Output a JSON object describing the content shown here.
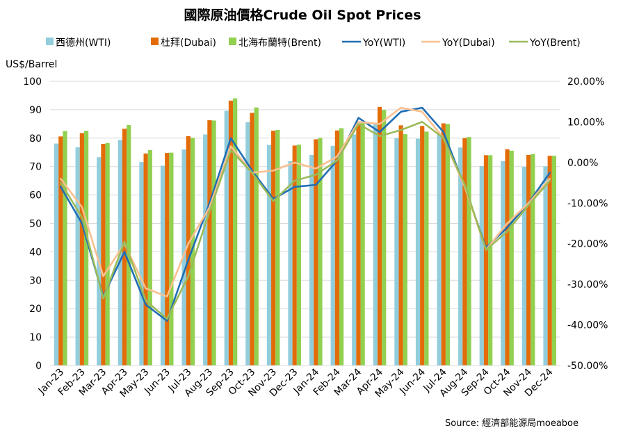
{
  "chart_data": {
    "type": "bar+line",
    "title": "國際原油價格Crude Oil Spot Prices",
    "y_left_label": "US$/Barrel",
    "y_left_lim": [
      0,
      100
    ],
    "y_left_ticks": [
      "0",
      "10",
      "20",
      "30",
      "40",
      "50",
      "60",
      "70",
      "80",
      "90",
      "100"
    ],
    "y_right_lim": [
      -50,
      20
    ],
    "y_right_ticks": [
      "-50.00%",
      "-40.00%",
      "-30.00%",
      "-20.00%",
      "-10.00%",
      "0.00%",
      "10.00%",
      "20.00%"
    ],
    "categories": [
      "Jan-23",
      "Feb-23",
      "Mar-23",
      "Apr-23",
      "May-23",
      "Jun-23",
      "Jul-23",
      "Aug-23",
      "Sep-23",
      "Oct-23",
      "Nov-23",
      "Dec-23",
      "Jan-24",
      "Feb-24",
      "Mar-24",
      "Apr-24",
      "May-24",
      "Jun-24",
      "Jul-24",
      "Aug-24",
      "Sep-24",
      "Oct-24",
      "Nov-24",
      "Dec-24"
    ],
    "grid": true,
    "legend_position": "top",
    "bar_series": [
      {
        "name": "西德州(WTI)",
        "color": "#92CDDC",
        "values": [
          78.1,
          76.8,
          73.3,
          79.4,
          71.6,
          70.3,
          76.0,
          81.3,
          89.6,
          85.6,
          77.6,
          71.9,
          74.1,
          77.3,
          81.3,
          85.4,
          80.0,
          79.8,
          81.8,
          76.7,
          70.2,
          71.9,
          69.9,
          70.1
        ]
      },
      {
        "name": "杜拜(Dubai)",
        "color": "#E36C09",
        "values": [
          80.6,
          81.8,
          78.0,
          83.3,
          74.6,
          74.8,
          80.7,
          86.3,
          93.2,
          88.9,
          82.6,
          77.4,
          79.6,
          82.7,
          85.2,
          91.0,
          84.5,
          84.3,
          85.2,
          80.0,
          74.0,
          76.1,
          74.1,
          73.8
        ]
      },
      {
        "name": "北海布蘭特(Brent)",
        "color": "#92D050",
        "values": [
          82.5,
          82.6,
          78.3,
          84.6,
          75.8,
          74.9,
          80.1,
          86.2,
          94.0,
          90.8,
          82.9,
          77.7,
          80.1,
          83.5,
          85.5,
          89.9,
          81.4,
          82.3,
          85.0,
          80.4,
          74.0,
          75.6,
          74.4,
          73.8
        ]
      }
    ],
    "line_series": [
      {
        "name": "YoY(WTI)",
        "color": "#1F6EB5",
        "values": [
          -6.0,
          -15.0,
          -33.0,
          -22.0,
          -35.0,
          -39.0,
          -24.0,
          -10.0,
          6.0,
          -2.0,
          -9.0,
          -6.0,
          -5.5,
          0.5,
          11.0,
          7.5,
          12.5,
          13.5,
          7.5,
          -6.0,
          -21.0,
          -16.0,
          -10.0,
          -2.5
        ]
      },
      {
        "name": "YoY(Dubai)",
        "color": "#FAC090",
        "values": [
          -4.0,
          -11.0,
          -28.0,
          -20.0,
          -31.0,
          -33.0,
          -20.0,
          -11.0,
          4.0,
          -2.5,
          -2.0,
          0.0,
          -1.5,
          1.5,
          10.0,
          9.5,
          13.5,
          12.5,
          6.0,
          -6.0,
          -21.5,
          -15.0,
          -10.0,
          -4.0
        ]
      },
      {
        "name": "YoY(Brent)",
        "color": "#9BBB59",
        "values": [
          -5.0,
          -13.5,
          -33.5,
          -19.5,
          -34.0,
          -38.5,
          -28.0,
          -12.0,
          3.0,
          -2.5,
          -9.5,
          -4.5,
          -3.0,
          0.5,
          9.5,
          6.5,
          8.0,
          10.0,
          6.0,
          -5.5,
          -21.5,
          -17.0,
          -10.5,
          -4.5
        ]
      }
    ],
    "source": "Source: 經濟部能源局moeaboe"
  }
}
